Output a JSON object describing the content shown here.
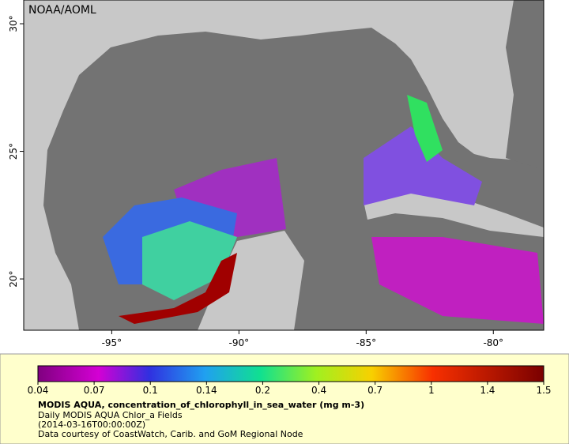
{
  "header": {
    "title": "NOAA/AOML"
  },
  "map": {
    "xlim": [
      -98.46,
      -78.02
    ],
    "ylim": [
      17.99,
      30.93
    ],
    "xticks": [
      {
        "value": -95,
        "label": "-95°"
      },
      {
        "value": -90,
        "label": "-90°"
      },
      {
        "value": -85,
        "label": "-85°"
      },
      {
        "value": -80,
        "label": "-80°"
      }
    ],
    "yticks": [
      {
        "value": 20,
        "label": "20°"
      },
      {
        "value": 25,
        "label": "25°"
      },
      {
        "value": 30,
        "label": "30°"
      }
    ]
  },
  "colorbar": {
    "ticks": [
      0.04,
      0.07,
      0.1,
      0.14,
      0.2,
      0.4,
      0.7,
      1,
      1.4,
      1.5
    ]
  },
  "caption": {
    "title": "MODIS AQUA, concentration_of_chlorophyll_in_sea_water (mg m-3)",
    "lines": [
      "Daily MODIS AQUA Chlor_a Fields",
      "(2014-03-16T00:00:00Z)",
      "Data courtesy of CoastWatch, Carib. and GoM Regional Node"
    ]
  }
}
